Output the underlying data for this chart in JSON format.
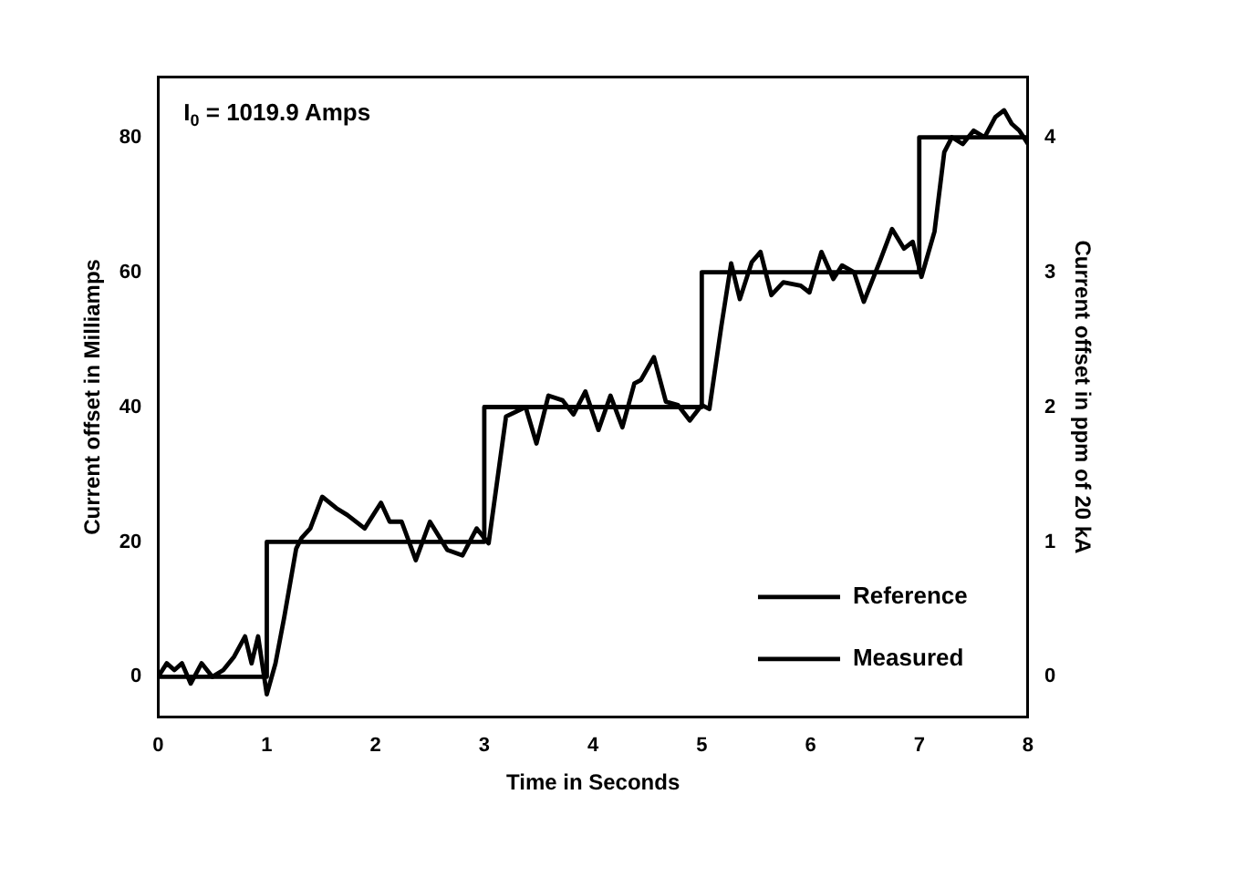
{
  "chart_data": {
    "type": "line",
    "xlabel": "Time in Seconds",
    "ylabel": "Current offset in Milliamps",
    "y2label": "Current offset in ppm of 20 kA",
    "annotations": [
      "I$_{0}$ = 1019.9 Amps"
    ],
    "xlim": [
      0,
      8
    ],
    "xticks": [
      0,
      1,
      2,
      3,
      4,
      5,
      6,
      7,
      8
    ],
    "ylim": [
      -6,
      89
    ],
    "yticks": [
      0,
      20,
      40,
      60,
      80
    ],
    "y2lim": [
      -0.3,
      4.45
    ],
    "y2ticks": [
      0,
      1,
      2,
      3,
      4
    ],
    "legend": "bottom right",
    "grid": false,
    "marker": "none",
    "line_style": "solid",
    "series": [
      {
        "name": "Reference",
        "color": "#000000",
        "x": [
          0,
          1,
          1,
          3,
          3,
          5,
          5,
          7,
          7,
          8
        ],
        "values": [
          0,
          0,
          20,
          20,
          40,
          40,
          60,
          60,
          80,
          80
        ]
      },
      {
        "name": "Measured",
        "color": "#000000",
        "x": [
          0,
          0.08,
          0.15,
          0.22,
          0.3,
          0.4,
          0.5,
          0.6,
          0.7,
          0.8,
          0.86,
          0.92,
          1.0,
          1.08,
          1.16,
          1.27,
          1.32,
          1.4,
          1.51,
          1.64,
          1.74,
          1.9,
          2.05,
          2.13,
          2.24,
          2.37,
          2.5,
          2.66,
          2.8,
          2.93,
          3.04,
          3.2,
          3.38,
          3.48,
          3.59,
          3.72,
          3.82,
          3.93,
          4.05,
          4.16,
          4.27,
          4.38,
          4.44,
          4.56,
          4.67,
          4.78,
          4.89,
          5.0,
          5.07,
          5.18,
          5.27,
          5.35,
          5.46,
          5.54,
          5.64,
          5.75,
          5.91,
          5.99,
          6.1,
          6.21,
          6.29,
          6.4,
          6.49,
          6.64,
          6.75,
          6.86,
          6.94,
          7.02,
          7.14,
          7.23,
          7.3,
          7.4,
          7.5,
          7.6,
          7.7,
          7.78,
          7.85,
          7.92,
          8.0
        ],
        "values": [
          0,
          2,
          1,
          2,
          -1,
          2,
          0,
          1,
          3,
          6,
          2,
          6,
          -2.6,
          2,
          8.8,
          19,
          20.6,
          22,
          26.7,
          25,
          24,
          22,
          25.8,
          23,
          23,
          17.3,
          23,
          18.8,
          18,
          22,
          19.8,
          38.6,
          40,
          34.6,
          41.7,
          41,
          38.9,
          42.3,
          36.6,
          41.7,
          37,
          43.5,
          44,
          47.4,
          40.8,
          40.3,
          38,
          40.3,
          39.7,
          52,
          61.3,
          56,
          61.5,
          63,
          56.6,
          58.5,
          58,
          57,
          63,
          59,
          61,
          60,
          55.6,
          61.7,
          66.4,
          63.5,
          64.5,
          59.3,
          66,
          77.8,
          80,
          79,
          81,
          80,
          83,
          84,
          82,
          81,
          79
        ]
      }
    ]
  }
}
